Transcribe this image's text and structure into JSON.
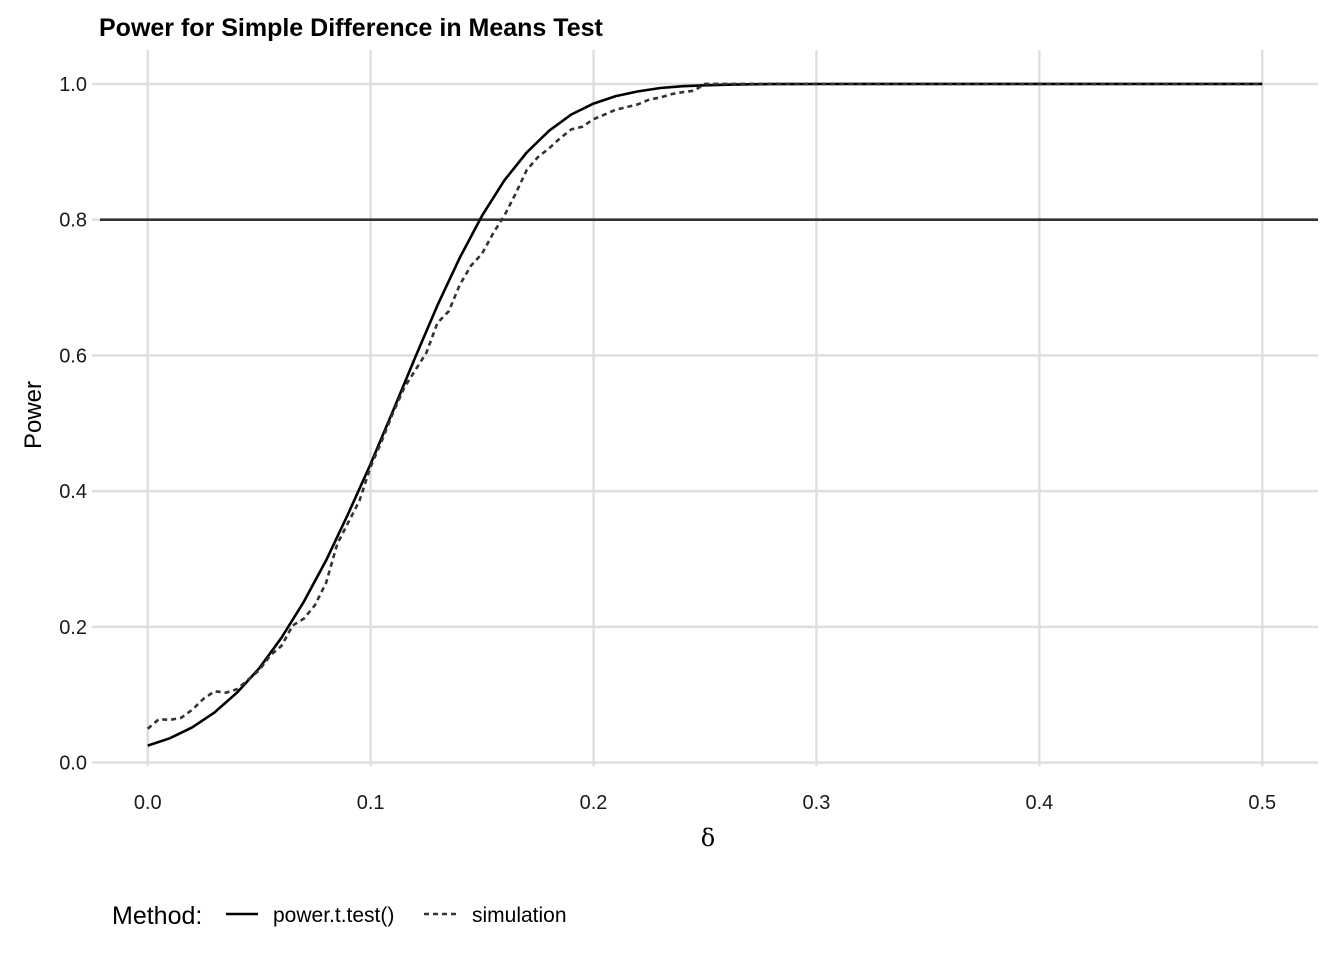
{
  "chart_data": {
    "type": "line",
    "title": "Power for Simple Difference in Means Test",
    "xlabel": "δ",
    "ylabel": "Power",
    "xlim": [
      -0.025,
      0.525
    ],
    "ylim": [
      -0.005,
      1.05
    ],
    "x_ticks": [
      "0.0",
      "0.1",
      "0.2",
      "0.3",
      "0.4",
      "0.5"
    ],
    "y_ticks": [
      "0.0",
      "0.2",
      "0.4",
      "0.6",
      "0.8",
      "1.0"
    ],
    "grid": true,
    "reference_line": {
      "y": 0.8,
      "color": "#333333"
    },
    "legend": {
      "title": "Method:",
      "position": "bottom-left",
      "entries": [
        "power.t.test()",
        "simulation"
      ]
    },
    "series": [
      {
        "name": "power.t.test()",
        "style": "solid",
        "color": "#000000",
        "x": [
          0.0,
          0.01,
          0.02,
          0.03,
          0.04,
          0.05,
          0.06,
          0.07,
          0.08,
          0.09,
          0.1,
          0.11,
          0.12,
          0.13,
          0.14,
          0.15,
          0.16,
          0.17,
          0.18,
          0.19,
          0.2,
          0.21,
          0.22,
          0.23,
          0.24,
          0.25,
          0.26,
          0.27,
          0.28,
          0.29,
          0.3,
          0.32,
          0.34,
          0.36,
          0.4,
          0.45,
          0.5
        ],
        "y": [
          0.025,
          0.036,
          0.052,
          0.074,
          0.103,
          0.139,
          0.184,
          0.237,
          0.298,
          0.367,
          0.44,
          0.518,
          0.597,
          0.674,
          0.744,
          0.806,
          0.858,
          0.899,
          0.931,
          0.955,
          0.971,
          0.982,
          0.989,
          0.994,
          0.9966,
          0.998,
          0.9989,
          0.9994,
          0.9997,
          0.9998,
          0.9999,
          1.0,
          1.0,
          1.0,
          1.0,
          1.0,
          1.0
        ]
      },
      {
        "name": "simulation",
        "style": "dashed",
        "color": "#333333",
        "x": [
          0.0,
          0.005,
          0.01,
          0.015,
          0.02,
          0.025,
          0.03,
          0.035,
          0.04,
          0.045,
          0.05,
          0.055,
          0.06,
          0.065,
          0.07,
          0.075,
          0.08,
          0.085,
          0.09,
          0.095,
          0.1,
          0.105,
          0.11,
          0.115,
          0.12,
          0.125,
          0.13,
          0.135,
          0.14,
          0.145,
          0.15,
          0.155,
          0.16,
          0.165,
          0.17,
          0.175,
          0.18,
          0.185,
          0.19,
          0.195,
          0.2,
          0.205,
          0.21,
          0.215,
          0.22,
          0.225,
          0.23,
          0.235,
          0.24,
          0.245,
          0.25,
          0.26,
          0.27,
          0.28,
          0.3,
          0.35,
          0.4,
          0.45,
          0.5
        ],
        "y": [
          0.05,
          0.064,
          0.063,
          0.066,
          0.078,
          0.094,
          0.105,
          0.103,
          0.108,
          0.122,
          0.136,
          0.158,
          0.172,
          0.202,
          0.212,
          0.232,
          0.265,
          0.322,
          0.354,
          0.386,
          0.436,
          0.474,
          0.515,
          0.552,
          0.578,
          0.604,
          0.648,
          0.665,
          0.704,
          0.732,
          0.75,
          0.78,
          0.806,
          0.838,
          0.873,
          0.892,
          0.905,
          0.92,
          0.933,
          0.937,
          0.948,
          0.955,
          0.962,
          0.966,
          0.97,
          0.977,
          0.98,
          0.985,
          0.988,
          0.99,
          1.0,
          1.0,
          1.0,
          1.0,
          1.0,
          1.0,
          1.0,
          1.0,
          1.0
        ]
      }
    ]
  }
}
